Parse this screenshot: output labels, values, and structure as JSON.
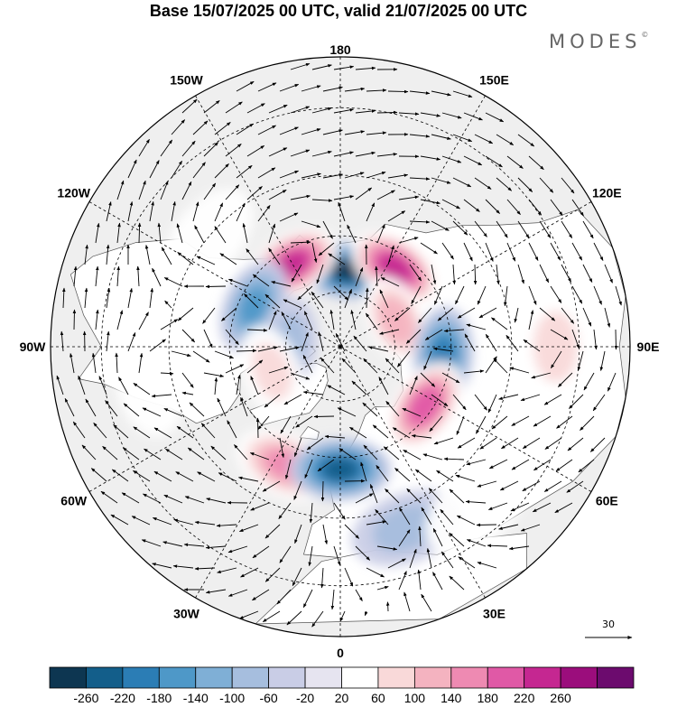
{
  "title": "Base 15/07/2025 00 UTC, valid 21/07/2025 00 UTC",
  "brand": "MODES",
  "brand_mark": "©",
  "longitude_labels": [
    {
      "text": "180",
      "lon": 180
    },
    {
      "text": "150E",
      "lon": 150
    },
    {
      "text": "120E",
      "lon": 120
    },
    {
      "text": "90E",
      "lon": 90
    },
    {
      "text": "60E",
      "lon": 60
    },
    {
      "text": "30E",
      "lon": 30
    },
    {
      "text": "0",
      "lon": 0
    },
    {
      "text": "30W",
      "lon": -30
    },
    {
      "text": "60W",
      "lon": -60
    },
    {
      "text": "90W",
      "lon": -90
    },
    {
      "text": "120W",
      "lon": -120
    },
    {
      "text": "150W",
      "lon": -150
    }
  ],
  "latitude_circles_deg": [
    30,
    45,
    60,
    75
  ],
  "reference_vector": {
    "label": "30",
    "magnitude": 30
  },
  "colorbar": {
    "ticks": [
      "-260",
      "-220",
      "-180",
      "-140",
      "-100",
      "-60",
      "-20",
      "20",
      "60",
      "100",
      "140",
      "180",
      "220",
      "260"
    ],
    "colors": [
      "#0d3651",
      "#135e8a",
      "#2b7db5",
      "#4e98c8",
      "#7fafd6",
      "#a6bede",
      "#c9cde6",
      "#e6e4f0",
      "#ffffff",
      "#f9d9d9",
      "#f4b3c0",
      "#ee8ab2",
      "#e059a6",
      "#c52791",
      "#9b0d7c",
      "#6c0b6e"
    ]
  },
  "anomaly_centers": [
    {
      "lon": 175,
      "lat": 69,
      "value": -260
    },
    {
      "lon": 145,
      "lat": 64,
      "value": 240
    },
    {
      "lon": -150,
      "lat": 64,
      "value": 230
    },
    {
      "lon": -115,
      "lat": 64,
      "value": -140
    },
    {
      "lon": 115,
      "lat": 73,
      "value": 120
    },
    {
      "lon": 85,
      "lat": 62,
      "value": -190
    },
    {
      "lon": 55,
      "lat": 62,
      "value": 200
    },
    {
      "lon": -25,
      "lat": 55,
      "value": 140
    },
    {
      "lon": 0,
      "lat": 57,
      "value": -230
    },
    {
      "lon": 90,
      "lat": 35,
      "value": 60
    },
    {
      "lon": -95,
      "lat": 76,
      "value": -60
    },
    {
      "lon": -70,
      "lat": 70,
      "value": 60
    },
    {
      "lon": 20,
      "lat": 40,
      "value": -60
    },
    {
      "lon": 40,
      "lat": 36,
      "value": 40
    },
    {
      "lon": -80,
      "lat": 40,
      "value": 40
    },
    {
      "lon": -130,
      "lat": 45,
      "value": 30
    }
  ]
}
